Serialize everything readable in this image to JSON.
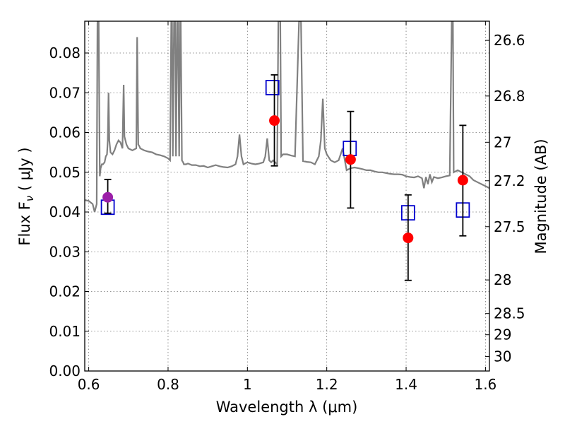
{
  "chart_data": {
    "type": "scatter",
    "xlabel": "Wavelength  λ (μm)",
    "ylabel": "Flux  F",
    "ylabel_sub": "ν",
    "ylabel_unit": "  (  μJy  )",
    "y2label": "Magnitude (AB)",
    "xlim": [
      0.59,
      1.61
    ],
    "ylim": [
      0.0,
      0.088
    ],
    "grid": true,
    "x_ticks": [
      0.6,
      0.8,
      1.0,
      1.2,
      1.4,
      1.6
    ],
    "x_tick_labels": [
      "0.6",
      "0.8",
      "1",
      "1.2",
      "1.4",
      "1.6"
    ],
    "y_ticks": [
      0.0,
      0.01,
      0.02,
      0.03,
      0.04,
      0.05,
      0.06,
      0.07,
      0.08
    ],
    "y_tick_labels": [
      "0.00",
      "0.01",
      "0.02",
      "0.03",
      "0.04",
      "0.05",
      "0.06",
      "0.07",
      "0.08"
    ],
    "mag_ticks": [
      26.6,
      26.8,
      27.0,
      27.2,
      27.5,
      28.0,
      28.5,
      29.0,
      30.0
    ],
    "mag_tick_labels": [
      "26.6",
      "26.8",
      "27",
      "27.2",
      "27.5",
      "28",
      "28.5",
      "29",
      "30"
    ],
    "colors": {
      "model": "#808080",
      "observed": "#ff0000",
      "observed_special": "#9b1fa8",
      "synthetic": "#0000cc",
      "errorbar": "#000000"
    },
    "series": [
      {
        "name": "observed",
        "marker": "circle",
        "points": [
          {
            "x": 0.648,
            "y": 0.0437,
            "err_lo": 0.0397,
            "err_hi": 0.0482,
            "special": true
          },
          {
            "x": 1.068,
            "y": 0.063,
            "err_lo": 0.0516,
            "err_hi": 0.0745
          },
          {
            "x": 1.26,
            "y": 0.0532,
            "err_lo": 0.041,
            "err_hi": 0.0653
          },
          {
            "x": 1.405,
            "y": 0.0335,
            "err_lo": 0.0228,
            "err_hi": 0.0443
          },
          {
            "x": 1.543,
            "y": 0.048,
            "err_lo": 0.034,
            "err_hi": 0.0618
          }
        ]
      },
      {
        "name": "model-photometry",
        "marker": "square",
        "points": [
          {
            "x": 0.648,
            "y": 0.0412
          },
          {
            "x": 1.063,
            "y": 0.0713
          },
          {
            "x": 1.258,
            "y": 0.056
          },
          {
            "x": 1.405,
            "y": 0.0398
          },
          {
            "x": 1.543,
            "y": 0.0405
          }
        ]
      },
      {
        "name": "model-spectrum",
        "type": "line",
        "x": [
          0.59,
          0.6,
          0.61,
          0.615,
          0.62,
          0.622,
          0.625,
          0.628,
          0.63,
          0.633,
          0.636,
          0.64,
          0.643,
          0.646,
          0.648,
          0.65,
          0.652,
          0.655,
          0.66,
          0.665,
          0.67,
          0.675,
          0.68,
          0.685,
          0.688,
          0.69,
          0.695,
          0.7,
          0.71,
          0.72,
          0.722,
          0.725,
          0.728,
          0.73,
          0.74,
          0.75,
          0.76,
          0.77,
          0.78,
          0.79,
          0.8,
          0.805,
          0.808,
          0.81,
          0.812,
          0.815,
          0.818,
          0.82,
          0.823,
          0.825,
          0.828,
          0.83,
          0.832,
          0.835,
          0.838,
          0.84,
          0.845,
          0.85,
          0.86,
          0.87,
          0.88,
          0.89,
          0.9,
          0.91,
          0.92,
          0.93,
          0.94,
          0.95,
          0.96,
          0.97,
          0.975,
          0.98,
          0.985,
          0.99,
          1.0,
          1.01,
          1.02,
          1.03,
          1.04,
          1.045,
          1.05,
          1.055,
          1.06,
          1.065,
          1.07,
          1.075,
          1.078,
          1.08,
          1.083,
          1.085,
          1.09,
          1.1,
          1.11,
          1.12,
          1.13,
          1.135,
          1.14,
          1.15,
          1.16,
          1.17,
          1.18,
          1.185,
          1.19,
          1.195,
          1.2,
          1.21,
          1.22,
          1.23,
          1.24,
          1.25,
          1.26,
          1.27,
          1.28,
          1.29,
          1.3,
          1.31,
          1.32,
          1.33,
          1.34,
          1.35,
          1.36,
          1.37,
          1.38,
          1.39,
          1.4,
          1.41,
          1.42,
          1.43,
          1.44,
          1.445,
          1.45,
          1.455,
          1.46,
          1.465,
          1.47,
          1.48,
          1.49,
          1.5,
          1.51,
          1.515,
          1.518,
          1.52,
          1.53,
          1.54,
          1.55,
          1.56,
          1.57,
          1.58,
          1.59,
          1.6,
          1.61
        ],
        "y": [
          0.043,
          0.0428,
          0.042,
          0.04,
          0.042,
          0.088,
          0.088,
          0.049,
          0.051,
          0.052,
          0.052,
          0.0525,
          0.054,
          0.0545,
          0.058,
          0.07,
          0.058,
          0.055,
          0.0545,
          0.0555,
          0.057,
          0.058,
          0.0575,
          0.056,
          0.072,
          0.059,
          0.057,
          0.056,
          0.0555,
          0.056,
          0.084,
          0.057,
          0.0565,
          0.056,
          0.0555,
          0.0552,
          0.055,
          0.0545,
          0.0543,
          0.054,
          0.0535,
          0.053,
          0.088,
          0.088,
          0.054,
          0.088,
          0.088,
          0.054,
          0.088,
          0.088,
          0.054,
          0.088,
          0.088,
          0.053,
          0.0525,
          0.052,
          0.052,
          0.0522,
          0.0518,
          0.0518,
          0.0515,
          0.0516,
          0.0512,
          0.0515,
          0.0518,
          0.0515,
          0.0513,
          0.0512,
          0.0515,
          0.052,
          0.054,
          0.0595,
          0.054,
          0.052,
          0.0525,
          0.0522,
          0.052,
          0.0522,
          0.0525,
          0.054,
          0.0585,
          0.053,
          0.0525,
          0.053,
          0.0525,
          0.052,
          0.088,
          0.088,
          0.088,
          0.054,
          0.0545,
          0.0545,
          0.0542,
          0.054,
          0.088,
          0.088,
          0.0528,
          0.0526,
          0.0525,
          0.052,
          0.054,
          0.058,
          0.0685,
          0.056,
          0.0545,
          0.053,
          0.0525,
          0.053,
          0.056,
          0.0505,
          0.051,
          0.0512,
          0.051,
          0.0508,
          0.0505,
          0.0505,
          0.0502,
          0.05,
          0.05,
          0.0498,
          0.0496,
          0.0495,
          0.0495,
          0.0494,
          0.049,
          0.0488,
          0.0487,
          0.049,
          0.0485,
          0.046,
          0.0488,
          0.047,
          0.0495,
          0.0475,
          0.0488,
          0.0485,
          0.0487,
          0.049,
          0.0492,
          0.088,
          0.088,
          0.05,
          0.0505,
          0.05,
          0.0495,
          0.049,
          0.048,
          0.0475,
          0.047,
          0.0465,
          0.046
        ]
      }
    ]
  }
}
